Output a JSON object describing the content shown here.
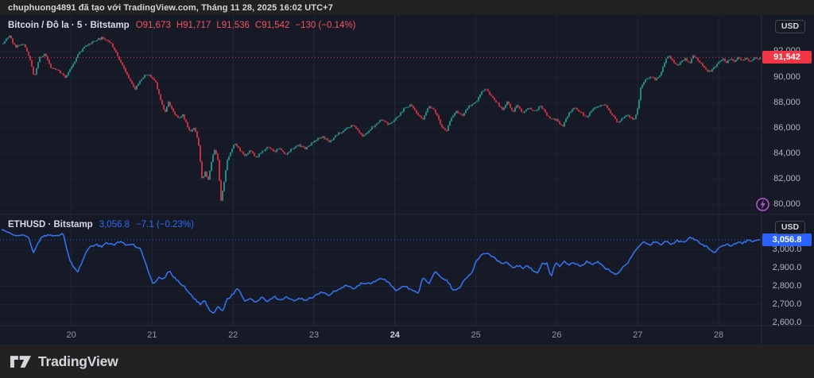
{
  "attribution": {
    "text": "chuphuong4891 đã tạo với TradingView.com, Tháng 11 28, 2025 16:02 UTC+7"
  },
  "footer": {
    "brand": "TradingView"
  },
  "panes": {
    "btc": {
      "legend_title": "Bitcoin / Đô la · 5 · Bitstamp",
      "ohlc": {
        "open": "O91,673",
        "high": "H91,717",
        "low": "L91,536",
        "close": "C91,542",
        "change": "−130 (−0.14%)"
      },
      "currency": "USD",
      "price_tag": "91,542"
    },
    "eth": {
      "legend_title": "ETHUSD · Bitstamp",
      "value": "3,056.8",
      "change": "−7.1 (−0.23%)",
      "currency": "USD",
      "price_tag": "3,056.8"
    }
  },
  "colors": {
    "up": "#26a69a",
    "down": "#f23645",
    "accent_red": "#f7525f",
    "accent_blue": "#2962ff",
    "eth_line": "#3575f5",
    "grid_h": "#1e2331",
    "grid_v": "#212637",
    "grid_major": "#2a3044",
    "separator": "#2a2e39",
    "flash": "#b053c8"
  },
  "chart_data": [
    {
      "type": "candlestick",
      "symbol": "BTCUSD",
      "title": "Bitcoin / Đô la · 5 · Bitstamp",
      "interval": "5",
      "exchange": "Bitstamp",
      "ohlc": {
        "open": 91673,
        "high": 91717,
        "low": 91536,
        "close": 91542,
        "change": -130,
        "change_pct": -0.14
      },
      "last": 91542,
      "ylim": [
        79250,
        94860
      ],
      "y_ticks": [
        80000,
        82000,
        84000,
        86000,
        88000,
        90000,
        92000
      ],
      "tick_decimals": 0,
      "xlim": [
        19.12,
        28.53
      ],
      "x_ticks": [
        {
          "label": "20",
          "day": 20,
          "major": false
        },
        {
          "label": "21",
          "day": 21,
          "major": false
        },
        {
          "label": "22",
          "day": 22,
          "major": false
        },
        {
          "label": "23",
          "day": 23,
          "major": false
        },
        {
          "label": "24",
          "day": 24,
          "major": true
        },
        {
          "label": "25",
          "day": 25,
          "major": false
        },
        {
          "label": "26",
          "day": 26,
          "major": false
        },
        {
          "label": "27",
          "day": 27,
          "major": false
        },
        {
          "label": "28",
          "day": 28,
          "major": false
        }
      ],
      "grid": true,
      "waypoints": [
        [
          19.16,
          92620
        ],
        [
          19.23,
          93240
        ],
        [
          19.31,
          92310
        ],
        [
          19.41,
          92620
        ],
        [
          19.49,
          91380
        ],
        [
          19.54,
          89950
        ],
        [
          19.61,
          91560
        ],
        [
          19.68,
          91810
        ],
        [
          19.75,
          90760
        ],
        [
          19.85,
          90570
        ],
        [
          19.92,
          90010
        ],
        [
          20.0,
          90760
        ],
        [
          20.08,
          91810
        ],
        [
          20.15,
          92310
        ],
        [
          20.28,
          92810
        ],
        [
          20.39,
          93060
        ],
        [
          20.49,
          92620
        ],
        [
          20.57,
          91690
        ],
        [
          20.64,
          90760
        ],
        [
          20.72,
          89820
        ],
        [
          20.79,
          89070
        ],
        [
          20.86,
          89820
        ],
        [
          20.93,
          90260
        ],
        [
          21.0,
          90070
        ],
        [
          21.05,
          89510
        ],
        [
          21.1,
          88270
        ],
        [
          21.16,
          87340
        ],
        [
          21.2,
          88080
        ],
        [
          21.26,
          87340
        ],
        [
          21.33,
          86710
        ],
        [
          21.38,
          87020
        ],
        [
          21.43,
          86220
        ],
        [
          21.47,
          85600
        ],
        [
          21.52,
          85970
        ],
        [
          21.57,
          84970
        ],
        [
          21.62,
          81740
        ],
        [
          21.65,
          82670
        ],
        [
          21.69,
          81860
        ],
        [
          21.73,
          83290
        ],
        [
          21.77,
          84350
        ],
        [
          21.81,
          83600
        ],
        [
          21.85,
          80370
        ],
        [
          21.89,
          81740
        ],
        [
          21.93,
          83600
        ],
        [
          21.97,
          84100
        ],
        [
          22.02,
          84850
        ],
        [
          22.06,
          84540
        ],
        [
          22.14,
          83920
        ],
        [
          22.21,
          84350
        ],
        [
          22.28,
          83730
        ],
        [
          22.36,
          84230
        ],
        [
          22.43,
          84540
        ],
        [
          22.51,
          84100
        ],
        [
          22.57,
          84480
        ],
        [
          22.65,
          83850
        ],
        [
          22.73,
          84350
        ],
        [
          22.8,
          84660
        ],
        [
          22.9,
          84350
        ],
        [
          23.0,
          84970
        ],
        [
          23.1,
          85350
        ],
        [
          23.19,
          84970
        ],
        [
          23.29,
          85600
        ],
        [
          23.39,
          85970
        ],
        [
          23.49,
          86280
        ],
        [
          23.6,
          85350
        ],
        [
          23.73,
          86100
        ],
        [
          23.83,
          86590
        ],
        [
          23.93,
          86220
        ],
        [
          24.03,
          86840
        ],
        [
          24.12,
          87590
        ],
        [
          24.19,
          87840
        ],
        [
          24.27,
          87150
        ],
        [
          24.34,
          86710
        ],
        [
          24.42,
          87770
        ],
        [
          24.5,
          87340
        ],
        [
          24.57,
          86220
        ],
        [
          24.64,
          85790
        ],
        [
          24.69,
          86710
        ],
        [
          24.76,
          87340
        ],
        [
          24.83,
          86900
        ],
        [
          24.91,
          87650
        ],
        [
          25.0,
          87960
        ],
        [
          25.06,
          88700
        ],
        [
          25.13,
          89070
        ],
        [
          25.19,
          88450
        ],
        [
          25.26,
          87960
        ],
        [
          25.33,
          87460
        ],
        [
          25.39,
          88080
        ],
        [
          25.46,
          87340
        ],
        [
          25.51,
          87840
        ],
        [
          25.58,
          87210
        ],
        [
          25.65,
          87650
        ],
        [
          25.72,
          87340
        ],
        [
          25.8,
          87770
        ],
        [
          25.9,
          86840
        ],
        [
          26.0,
          86590
        ],
        [
          26.07,
          86100
        ],
        [
          26.14,
          87020
        ],
        [
          26.22,
          87650
        ],
        [
          26.29,
          87210
        ],
        [
          26.37,
          86840
        ],
        [
          26.44,
          87460
        ],
        [
          26.51,
          87770
        ],
        [
          26.61,
          87840
        ],
        [
          26.69,
          87020
        ],
        [
          26.77,
          86410
        ],
        [
          26.81,
          86840
        ],
        [
          26.88,
          87090
        ],
        [
          26.95,
          86590
        ],
        [
          27.0,
          87520
        ],
        [
          27.04,
          89200
        ],
        [
          27.1,
          89820
        ],
        [
          27.16,
          90010
        ],
        [
          27.22,
          89700
        ],
        [
          27.28,
          90130
        ],
        [
          27.33,
          91070
        ],
        [
          27.38,
          91690
        ],
        [
          27.43,
          91310
        ],
        [
          27.48,
          90880
        ],
        [
          27.53,
          91190
        ],
        [
          27.59,
          91440
        ],
        [
          27.64,
          91070
        ],
        [
          27.69,
          91750
        ],
        [
          27.74,
          91440
        ],
        [
          27.79,
          91070
        ],
        [
          27.85,
          90570
        ],
        [
          27.9,
          90450
        ],
        [
          27.95,
          90820
        ],
        [
          28.0,
          91190
        ],
        [
          28.05,
          91440
        ],
        [
          28.1,
          91130
        ],
        [
          28.14,
          91440
        ],
        [
          28.19,
          91190
        ],
        [
          28.24,
          91500
        ],
        [
          28.29,
          91190
        ],
        [
          28.34,
          91440
        ],
        [
          28.39,
          91130
        ],
        [
          28.44,
          91500
        ],
        [
          28.48,
          91310
        ],
        [
          28.51,
          91542
        ]
      ]
    },
    {
      "type": "line",
      "symbol": "ETHUSD",
      "title": "ETHUSD · Bitstamp",
      "exchange": "Bitstamp",
      "last": 3056.8,
      "change": -7.1,
      "change_pct": -0.23,
      "ylim": [
        2583,
        3197
      ],
      "y_ticks": [
        2600,
        2700,
        2800,
        2900,
        3000
      ],
      "tick_decimals": 1,
      "grid": true,
      "waypoints": [
        [
          19.14,
          3110
        ],
        [
          19.23,
          3096
        ],
        [
          19.31,
          3075
        ],
        [
          19.41,
          3079
        ],
        [
          19.48,
          3066
        ],
        [
          19.53,
          2991
        ],
        [
          19.63,
          3075
        ],
        [
          19.72,
          3088
        ],
        [
          19.82,
          3075
        ],
        [
          19.9,
          3088
        ],
        [
          19.98,
          2934
        ],
        [
          20.08,
          2877
        ],
        [
          20.15,
          2956
        ],
        [
          20.22,
          3022
        ],
        [
          20.3,
          3035
        ],
        [
          20.37,
          3022
        ],
        [
          20.45,
          3039
        ],
        [
          20.53,
          3026
        ],
        [
          20.61,
          3039
        ],
        [
          20.69,
          3022
        ],
        [
          20.77,
          3031
        ],
        [
          20.86,
          3009
        ],
        [
          20.92,
          2934
        ],
        [
          21.01,
          2816
        ],
        [
          21.08,
          2846
        ],
        [
          21.15,
          2838
        ],
        [
          21.21,
          2882
        ],
        [
          21.28,
          2838
        ],
        [
          21.35,
          2816
        ],
        [
          21.41,
          2794
        ],
        [
          21.47,
          2759
        ],
        [
          21.54,
          2728
        ],
        [
          21.6,
          2706
        ],
        [
          21.65,
          2724
        ],
        [
          21.71,
          2671
        ],
        [
          21.77,
          2649
        ],
        [
          21.82,
          2684
        ],
        [
          21.87,
          2658
        ],
        [
          21.93,
          2724
        ],
        [
          21.99,
          2750
        ],
        [
          22.06,
          2790
        ],
        [
          22.14,
          2724
        ],
        [
          22.21,
          2741
        ],
        [
          22.28,
          2715
        ],
        [
          22.36,
          2737
        ],
        [
          22.43,
          2715
        ],
        [
          22.51,
          2737
        ],
        [
          22.59,
          2719
        ],
        [
          22.67,
          2741
        ],
        [
          22.75,
          2724
        ],
        [
          22.83,
          2741
        ],
        [
          22.91,
          2728
        ],
        [
          23.0,
          2746
        ],
        [
          23.1,
          2763
        ],
        [
          23.19,
          2746
        ],
        [
          23.29,
          2781
        ],
        [
          23.39,
          2807
        ],
        [
          23.49,
          2794
        ],
        [
          23.58,
          2820
        ],
        [
          23.73,
          2816
        ],
        [
          23.83,
          2838
        ],
        [
          23.93,
          2816
        ],
        [
          24.01,
          2772
        ],
        [
          24.11,
          2807
        ],
        [
          24.2,
          2789
        ],
        [
          24.29,
          2768
        ],
        [
          24.35,
          2851
        ],
        [
          24.42,
          2803
        ],
        [
          24.5,
          2877
        ],
        [
          24.57,
          2846
        ],
        [
          24.64,
          2833
        ],
        [
          24.71,
          2789
        ],
        [
          24.77,
          2785
        ],
        [
          24.86,
          2838
        ],
        [
          24.94,
          2868
        ],
        [
          25.01,
          2943
        ],
        [
          25.09,
          2974
        ],
        [
          25.15,
          2978
        ],
        [
          25.23,
          2952
        ],
        [
          25.31,
          2930
        ],
        [
          25.39,
          2939
        ],
        [
          25.46,
          2903
        ],
        [
          25.53,
          2921
        ],
        [
          25.58,
          2903
        ],
        [
          25.64,
          2917
        ],
        [
          25.7,
          2882
        ],
        [
          25.76,
          2868
        ],
        [
          25.82,
          2917
        ],
        [
          25.88,
          2921
        ],
        [
          25.93,
          2846
        ],
        [
          25.98,
          2930
        ],
        [
          26.04,
          2917
        ],
        [
          26.09,
          2943
        ],
        [
          26.15,
          2921
        ],
        [
          26.21,
          2934
        ],
        [
          26.29,
          2908
        ],
        [
          26.37,
          2930
        ],
        [
          26.44,
          2917
        ],
        [
          26.51,
          2934
        ],
        [
          26.59,
          2903
        ],
        [
          26.67,
          2882
        ],
        [
          26.74,
          2868
        ],
        [
          26.8,
          2903
        ],
        [
          26.88,
          2934
        ],
        [
          26.95,
          2978
        ],
        [
          27.01,
          3018
        ],
        [
          27.08,
          3039
        ],
        [
          27.15,
          3022
        ],
        [
          27.22,
          3048
        ],
        [
          27.29,
          3031
        ],
        [
          27.35,
          3053
        ],
        [
          27.42,
          3035
        ],
        [
          27.49,
          3057
        ],
        [
          27.57,
          3039
        ],
        [
          27.65,
          3070
        ],
        [
          27.72,
          3048
        ],
        [
          27.79,
          3031
        ],
        [
          27.87,
          3009
        ],
        [
          27.95,
          2991
        ],
        [
          28.02,
          3022
        ],
        [
          28.09,
          3039
        ],
        [
          28.16,
          3026
        ],
        [
          28.23,
          3044
        ],
        [
          28.29,
          3031
        ],
        [
          28.36,
          3048
        ],
        [
          28.43,
          3039
        ],
        [
          28.51,
          3057
        ]
      ]
    }
  ]
}
